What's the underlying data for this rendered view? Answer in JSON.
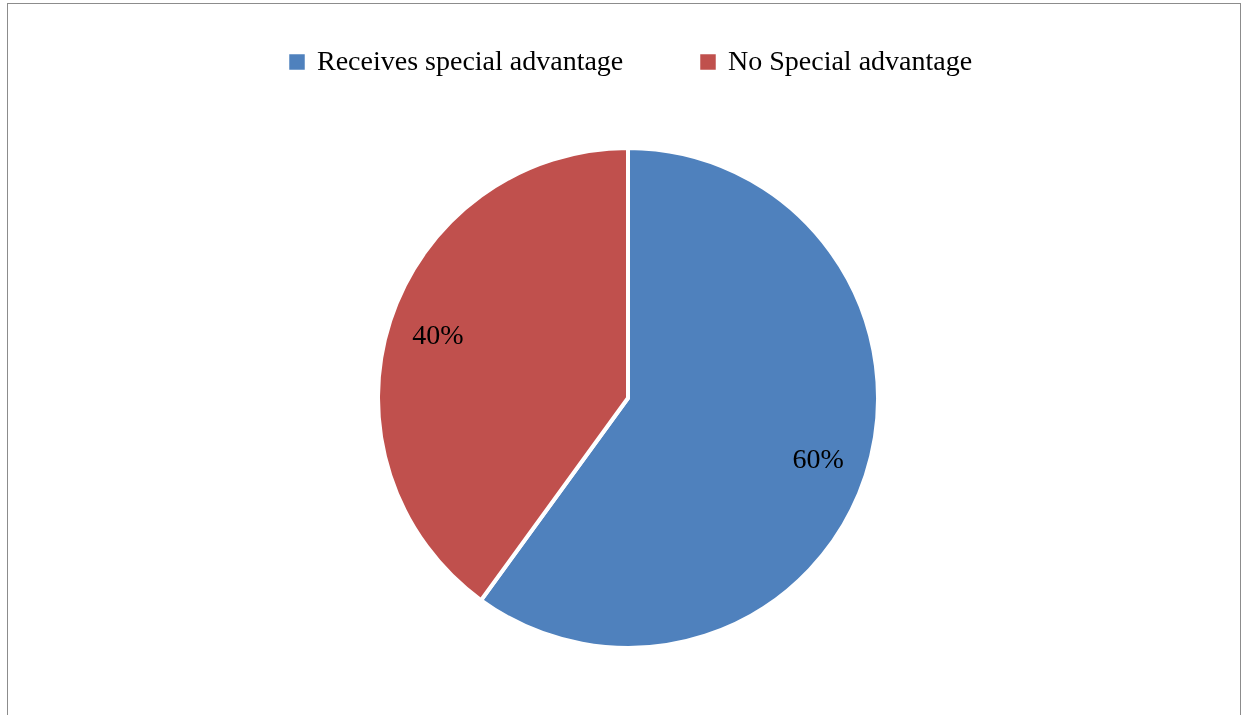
{
  "chart_data": {
    "type": "pie",
    "categories": [
      "Receives special advantage",
      "No Special advantage"
    ],
    "values": [
      60,
      40
    ],
    "colors": [
      "#4f81bd",
      "#c0504d"
    ],
    "value_labels": [
      "60%",
      "40%"
    ],
    "legend": "top"
  }
}
